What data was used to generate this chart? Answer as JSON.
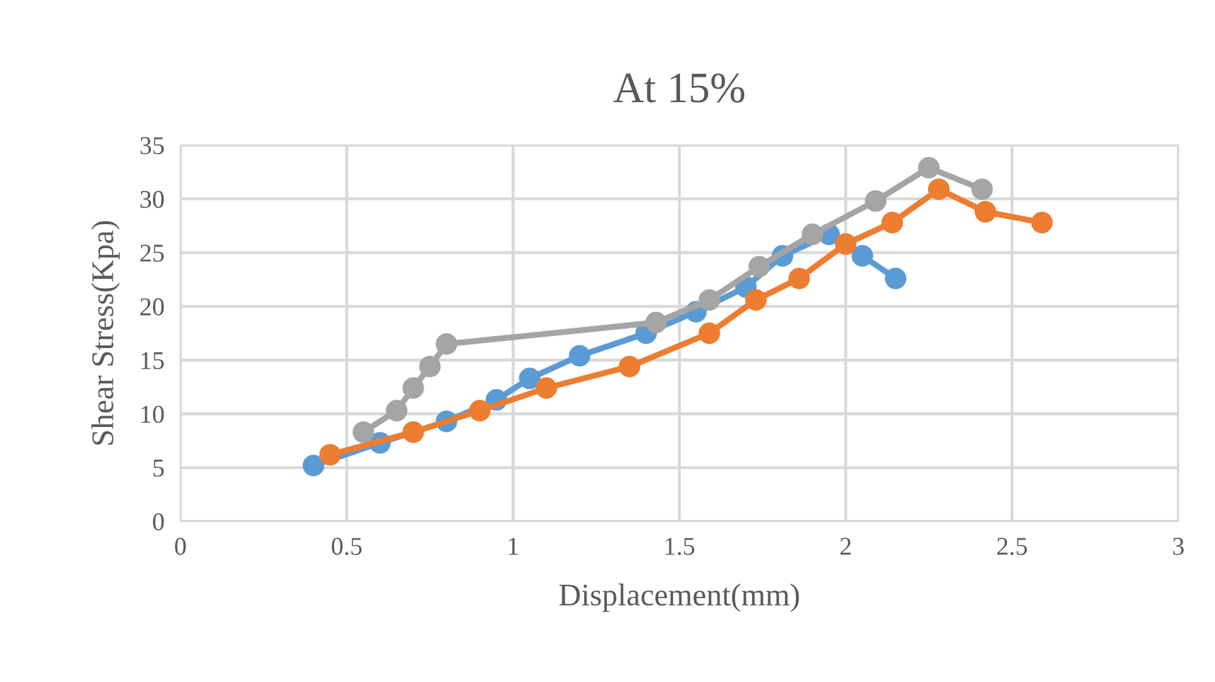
{
  "chart_data": {
    "type": "line",
    "title": "At 15%",
    "xlabel": "Displacement(mm)",
    "ylabel": "Shear Stress(Kpa)",
    "xlim": [
      0,
      3
    ],
    "xticks": [
      0,
      0.5,
      1,
      1.5,
      2,
      2.5,
      3
    ],
    "ylim": [
      0,
      35
    ],
    "yticks": [
      0,
      5,
      10,
      15,
      20,
      25,
      30,
      35
    ],
    "grid": true,
    "marker": "circle",
    "legend": false,
    "series": [
      {
        "color": "#5b9bd5",
        "x": [
          0.4,
          0.6,
          0.8,
          0.95,
          1.05,
          1.2,
          1.4,
          1.55,
          1.7,
          1.81,
          1.95,
          2.05,
          2.15
        ],
        "values": [
          5.2,
          7.3,
          9.3,
          11.3,
          13.3,
          15.4,
          17.5,
          19.5,
          21.8,
          24.7,
          26.7,
          24.7,
          22.6
        ]
      },
      {
        "color": "#ed7d31",
        "x": [
          0.45,
          0.7,
          0.9,
          1.1,
          1.35,
          1.59,
          1.73,
          1.86,
          2.0,
          2.14,
          2.28,
          2.42,
          2.59
        ],
        "values": [
          6.2,
          8.3,
          10.3,
          12.4,
          14.4,
          17.5,
          20.6,
          22.6,
          25.8,
          27.8,
          30.9,
          28.8,
          27.8
        ]
      },
      {
        "color": "#a5a5a5",
        "x": [
          0.55,
          0.65,
          0.7,
          0.75,
          0.8,
          1.43,
          1.59,
          1.74,
          1.9,
          2.09,
          2.25,
          2.41
        ],
        "values": [
          8.3,
          10.3,
          12.4,
          14.4,
          16.5,
          18.5,
          20.6,
          23.7,
          26.7,
          29.8,
          32.9,
          30.9
        ]
      }
    ]
  }
}
